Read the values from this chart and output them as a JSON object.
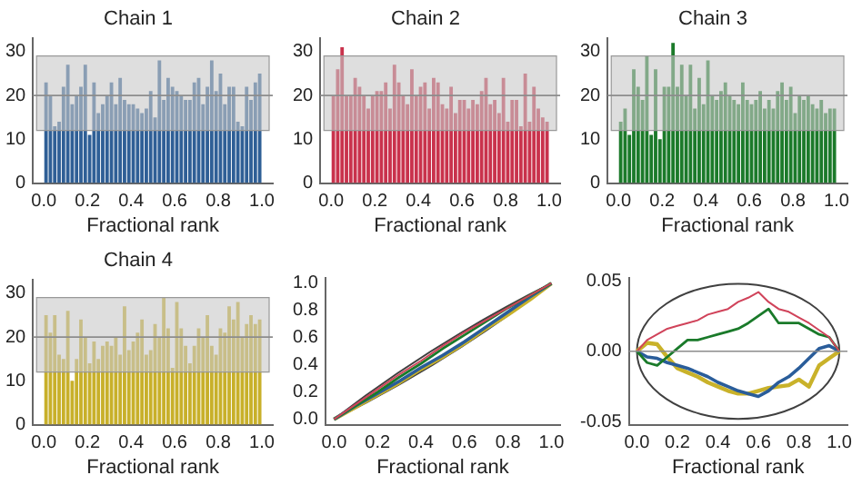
{
  "chart_data": [
    {
      "type": "histogram",
      "title": "Chain 1",
      "xlabel": "Fractional rank",
      "color": "#2f5f96",
      "bins": [
        0,
        0.02,
        0.04,
        0.06,
        0.08,
        0.1,
        0.12,
        0.14,
        0.16,
        0.18,
        0.2,
        0.22,
        0.24,
        0.26,
        0.28,
        0.3,
        0.32,
        0.34,
        0.36,
        0.38,
        0.4,
        0.42,
        0.44,
        0.46,
        0.48,
        0.5,
        0.52,
        0.54,
        0.56,
        0.58,
        0.6,
        0.62,
        0.64,
        0.66,
        0.68,
        0.7,
        0.72,
        0.74,
        0.76,
        0.78,
        0.8,
        0.82,
        0.84,
        0.86,
        0.88,
        0.9,
        0.92,
        0.94,
        0.96,
        0.98,
        1
      ],
      "values": [
        23,
        20,
        13,
        14,
        22,
        27,
        18,
        20,
        22,
        27,
        11,
        23,
        16,
        18,
        20,
        23,
        18,
        24,
        19,
        18,
        18,
        17,
        16,
        17,
        21,
        15,
        28,
        19,
        24,
        22,
        21,
        20,
        19,
        19,
        23,
        24,
        18,
        22,
        28,
        21,
        25,
        18,
        22,
        22,
        14,
        13,
        22,
        19,
        23,
        25
      ],
      "xlim": [
        -0.05,
        1.05
      ],
      "ylim": [
        0,
        33
      ],
      "xticks": [
        {
          "value": 0,
          "label": "0.0"
        },
        {
          "value": 0.2,
          "label": "0.2"
        },
        {
          "value": 0.4,
          "label": "0.4"
        },
        {
          "value": 0.6,
          "label": "0.6"
        },
        {
          "value": 0.8,
          "label": "0.8"
        },
        {
          "value": 1,
          "label": "1.0"
        }
      ],
      "yticks": [
        0,
        10,
        20,
        30
      ],
      "bands": [
        {
          "axis": "y",
          "from": 12,
          "to": 29,
          "color": "#c8c8c8"
        }
      ],
      "ref_lines": [
        {
          "axis": "y",
          "value": 20,
          "color": "#8c8c8c"
        }
      ]
    },
    {
      "type": "histogram",
      "title": "Chain 2",
      "xlabel": "Fractional rank",
      "color": "#c9324c",
      "bins": [
        0,
        0.02,
        0.04,
        0.06,
        0.08,
        0.1,
        0.12,
        0.14,
        0.16,
        0.18,
        0.2,
        0.22,
        0.24,
        0.26,
        0.28,
        0.3,
        0.32,
        0.34,
        0.36,
        0.38,
        0.4,
        0.42,
        0.44,
        0.46,
        0.48,
        0.5,
        0.52,
        0.54,
        0.56,
        0.58,
        0.6,
        0.62,
        0.64,
        0.66,
        0.68,
        0.7,
        0.72,
        0.74,
        0.76,
        0.78,
        0.8,
        0.82,
        0.84,
        0.86,
        0.88,
        0.9,
        0.92,
        0.94,
        0.96,
        0.98,
        1
      ],
      "values": [
        20,
        26,
        31,
        20,
        20,
        24,
        22,
        20,
        17,
        20,
        21,
        21,
        23,
        17,
        27,
        23,
        20,
        18,
        26,
        20,
        22,
        23,
        17,
        24,
        23,
        18,
        17,
        22,
        16,
        19,
        19,
        17,
        19,
        18,
        21,
        24,
        18,
        19,
        16,
        24,
        14,
        19,
        19,
        13,
        25,
        14,
        22,
        17,
        15,
        14
      ],
      "xlim": [
        -0.05,
        1.05
      ],
      "ylim": [
        0,
        33
      ],
      "xticks": [
        {
          "value": 0,
          "label": "0.0"
        },
        {
          "value": 0.2,
          "label": "0.2"
        },
        {
          "value": 0.4,
          "label": "0.4"
        },
        {
          "value": 0.6,
          "label": "0.6"
        },
        {
          "value": 0.8,
          "label": "0.8"
        },
        {
          "value": 1,
          "label": "1.0"
        }
      ],
      "yticks": [
        0,
        10,
        20,
        30
      ],
      "bands": [
        {
          "axis": "y",
          "from": 12,
          "to": 29,
          "color": "#c8c8c8"
        }
      ],
      "ref_lines": [
        {
          "axis": "y",
          "value": 20,
          "color": "#8c8c8c"
        }
      ]
    },
    {
      "type": "histogram",
      "title": "Chain 3",
      "xlabel": "Fractional rank",
      "color": "#1b7a2a",
      "bins": [
        0,
        0.02,
        0.04,
        0.06,
        0.08,
        0.1,
        0.12,
        0.14,
        0.16,
        0.18,
        0.2,
        0.22,
        0.24,
        0.26,
        0.28,
        0.3,
        0.32,
        0.34,
        0.36,
        0.38,
        0.4,
        0.42,
        0.44,
        0.46,
        0.48,
        0.5,
        0.52,
        0.54,
        0.56,
        0.58,
        0.6,
        0.62,
        0.64,
        0.66,
        0.68,
        0.7,
        0.72,
        0.74,
        0.76,
        0.78,
        0.8,
        0.82,
        0.84,
        0.86,
        0.88,
        0.9,
        0.92,
        0.94,
        0.96,
        0.98,
        1
      ],
      "values": [
        14,
        17,
        11,
        26,
        22,
        19,
        29,
        11,
        26,
        10,
        22,
        22,
        32,
        22,
        27,
        20,
        27,
        17,
        24,
        18,
        28,
        20,
        19,
        21,
        23,
        20,
        19,
        18,
        23,
        19,
        18,
        19,
        21,
        17,
        19,
        17,
        21,
        23,
        19,
        22,
        16,
        20,
        19,
        20,
        18,
        17,
        19,
        16,
        17,
        17
      ],
      "xlim": [
        -0.05,
        1.05
      ],
      "ylim": [
        0,
        33
      ],
      "xticks": [
        {
          "value": 0,
          "label": "0.0"
        },
        {
          "value": 0.2,
          "label": "0.2"
        },
        {
          "value": 0.4,
          "label": "0.4"
        },
        {
          "value": 0.6,
          "label": "0.6"
        },
        {
          "value": 0.8,
          "label": "0.8"
        },
        {
          "value": 1,
          "label": "1.0"
        }
      ],
      "yticks": [
        0,
        10,
        20,
        30
      ],
      "bands": [
        {
          "axis": "y",
          "from": 12,
          "to": 29,
          "color": "#c8c8c8"
        }
      ],
      "ref_lines": [
        {
          "axis": "y",
          "value": 20,
          "color": "#8c8c8c"
        }
      ]
    },
    {
      "type": "histogram",
      "title": "Chain 4",
      "xlabel": "Fractional rank",
      "color": "#c8b02a",
      "bins": [
        0,
        0.02,
        0.04,
        0.06,
        0.08,
        0.1,
        0.12,
        0.14,
        0.16,
        0.18,
        0.2,
        0.22,
        0.24,
        0.26,
        0.28,
        0.3,
        0.32,
        0.34,
        0.36,
        0.38,
        0.4,
        0.42,
        0.44,
        0.46,
        0.48,
        0.5,
        0.52,
        0.54,
        0.56,
        0.58,
        0.6,
        0.62,
        0.64,
        0.66,
        0.68,
        0.7,
        0.72,
        0.74,
        0.76,
        0.78,
        0.8,
        0.82,
        0.84,
        0.86,
        0.88,
        0.9,
        0.92,
        0.94,
        0.96,
        0.98,
        1
      ],
      "values": [
        25,
        21,
        25,
        16,
        15,
        26,
        10,
        15,
        24,
        20,
        14,
        19,
        15,
        18,
        19,
        18,
        20,
        16,
        27,
        17,
        19,
        21,
        24,
        16,
        17,
        23,
        20,
        29,
        22,
        13,
        28,
        22,
        18,
        14,
        18,
        22,
        20,
        25,
        18,
        16,
        22,
        21,
        27,
        24,
        28,
        20,
        23,
        25,
        23,
        24
      ],
      "xlim": [
        -0.05,
        1.05
      ],
      "ylim": [
        0,
        33
      ],
      "xticks": [
        {
          "value": 0,
          "label": "0.0"
        },
        {
          "value": 0.2,
          "label": "0.2"
        },
        {
          "value": 0.4,
          "label": "0.4"
        },
        {
          "value": 0.6,
          "label": "0.6"
        },
        {
          "value": 0.8,
          "label": "0.8"
        },
        {
          "value": 1,
          "label": "1.0"
        }
      ],
      "yticks": [
        0,
        10,
        20,
        30
      ],
      "bands": [
        {
          "axis": "y",
          "from": 12,
          "to": 29,
          "color": "#c8c8c8"
        }
      ],
      "ref_lines": [
        {
          "axis": "y",
          "value": 20,
          "color": "#8c8c8c"
        }
      ]
    },
    {
      "type": "line",
      "xlabel": "Fractional rank",
      "x": [
        0,
        0.1,
        0.2,
        0.3,
        0.4,
        0.5,
        0.6,
        0.7,
        0.8,
        0.9,
        1
      ],
      "series": [
        {
          "color": "#d0435a",
          "values": [
            0,
            0.11,
            0.22,
            0.33,
            0.43,
            0.54,
            0.64,
            0.73,
            0.82,
            0.91,
            1
          ]
        },
        {
          "color": "#1a7a2a",
          "values": [
            0,
            0.1,
            0.2,
            0.31,
            0.41,
            0.52,
            0.62,
            0.72,
            0.82,
            0.91,
            1
          ]
        },
        {
          "color": "#2a5d9a",
          "values": [
            0,
            0.1,
            0.19,
            0.28,
            0.38,
            0.47,
            0.57,
            0.68,
            0.79,
            0.9,
            1
          ]
        },
        {
          "color": "#c9b22a",
          "values": [
            0,
            0.09,
            0.18,
            0.27,
            0.37,
            0.46,
            0.56,
            0.67,
            0.77,
            0.88,
            1
          ]
        }
      ],
      "xlim": [
        -0.04,
        1.04
      ],
      "ylim": [
        -0.04,
        1.04
      ],
      "xticks": [
        {
          "value": 0,
          "label": "0.0"
        },
        {
          "value": 0.2,
          "label": "0.2"
        },
        {
          "value": 0.4,
          "label": "0.4"
        },
        {
          "value": 0.6,
          "label": "0.6"
        },
        {
          "value": 0.8,
          "label": "0.8"
        },
        {
          "value": 1,
          "label": "1.0"
        }
      ],
      "yticks": [
        {
          "value": 0,
          "label": "0.0"
        },
        {
          "value": 0.2,
          "label": "0.2"
        },
        {
          "value": 0.4,
          "label": "0.4"
        },
        {
          "value": 0.6,
          "label": "0.6"
        },
        {
          "value": 0.8,
          "label": "0.8"
        },
        {
          "value": 1,
          "label": "1.0"
        }
      ]
    },
    {
      "type": "line",
      "xlabel": "Fractional rank",
      "x": [
        0,
        0.05,
        0.1,
        0.15,
        0.2,
        0.25,
        0.3,
        0.35,
        0.4,
        0.45,
        0.5,
        0.55,
        0.6,
        0.65,
        0.7,
        0.75,
        0.8,
        0.85,
        0.9,
        0.95,
        1
      ],
      "series": [
        {
          "color": "#d0435a",
          "values": [
            0,
            0.008,
            0.012,
            0.016,
            0.018,
            0.02,
            0.022,
            0.026,
            0.028,
            0.03,
            0.035,
            0.038,
            0.042,
            0.035,
            0.03,
            0.028,
            0.024,
            0.02,
            0.015,
            0.01,
            0
          ]
        },
        {
          "color": "#1a7a2a",
          "values": [
            0,
            -0.008,
            -0.01,
            -0.004,
            0.002,
            0.008,
            0.008,
            0.01,
            0.012,
            0.014,
            0.016,
            0.02,
            0.025,
            0.03,
            0.02,
            0.02,
            0.02,
            0.016,
            0.012,
            0.01,
            0
          ]
        },
        {
          "color": "#2a5d9a",
          "values": [
            0,
            -0.004,
            -0.005,
            -0.008,
            -0.01,
            -0.012,
            -0.015,
            -0.018,
            -0.022,
            -0.025,
            -0.028,
            -0.03,
            -0.032,
            -0.028,
            -0.022,
            -0.018,
            -0.012,
            -0.005,
            0.002,
            0.004,
            0
          ]
        },
        {
          "color": "#c9b22a",
          "values": [
            0,
            0.006,
            0.005,
            -0.004,
            -0.012,
            -0.015,
            -0.018,
            -0.022,
            -0.025,
            -0.028,
            -0.03,
            -0.03,
            -0.028,
            -0.026,
            -0.025,
            -0.024,
            -0.02,
            -0.025,
            -0.01,
            -0.005,
            0
          ]
        }
      ],
      "xlim": [
        -0.04,
        1.04
      ],
      "ylim": [
        -0.052,
        0.052
      ],
      "xticks": [
        {
          "value": 0,
          "label": "0.0"
        },
        {
          "value": 0.2,
          "label": "0.2"
        },
        {
          "value": 0.4,
          "label": "0.4"
        },
        {
          "value": 0.6,
          "label": "0.6"
        },
        {
          "value": 0.8,
          "label": "0.8"
        },
        {
          "value": 1,
          "label": "1.0"
        }
      ],
      "yticks": [
        {
          "value": -0.05,
          "label": "-0.05"
        },
        {
          "value": 0,
          "label": "0.00"
        },
        {
          "value": 0.05,
          "label": "0.05"
        }
      ],
      "ref_lines": [
        {
          "axis": "y",
          "value": 0,
          "color": "#8c8c8c"
        }
      ]
    }
  ]
}
